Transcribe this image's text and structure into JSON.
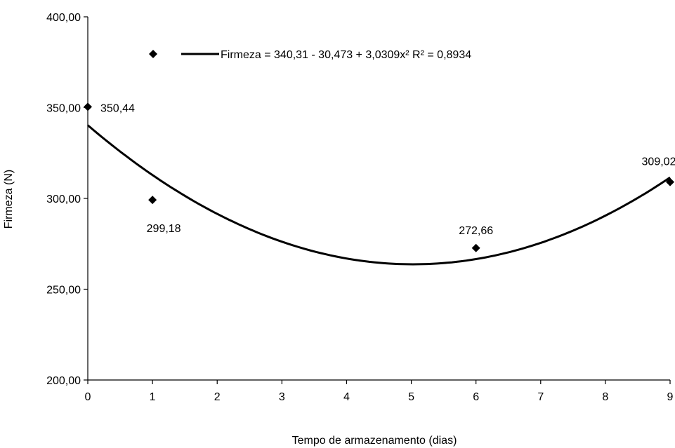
{
  "chart_data": {
    "type": "scatter",
    "xlabel": "Tempo de armazenamento (dias)",
    "ylabel": "Firmeza (N)",
    "xlim": [
      0,
      9
    ],
    "ylim": [
      200,
      400
    ],
    "x_ticks": [
      "0",
      "1",
      "2",
      "3",
      "4",
      "5",
      "6",
      "7",
      "8",
      "9"
    ],
    "y_ticks": [
      "200,00",
      "250,00",
      "300,00",
      "350,00",
      "400,00"
    ],
    "grid": false,
    "series": [
      {
        "marker": "diamond",
        "color": "#000000",
        "points": [
          {
            "x": 0,
            "y": 350.44,
            "label": "350,44"
          },
          {
            "x": 1,
            "y": 299.18,
            "label": "299,18"
          },
          {
            "x": 6,
            "y": 272.66,
            "label": "272,66"
          },
          {
            "x": 9,
            "y": 309.02,
            "label": "309,02"
          }
        ]
      }
    ],
    "trendline": {
      "type": "polynomial",
      "coefficients": [
        340.31,
        -30.473,
        3.0309
      ],
      "color": "#000000"
    },
    "legend": {
      "placement": "top",
      "entries": [
        {
          "marker": "diamond",
          "text": ""
        },
        {
          "marker": "line",
          "text": "Firmeza = 340,31 - 30,473 + 3,0309x² R² = 0,8934"
        }
      ]
    }
  }
}
